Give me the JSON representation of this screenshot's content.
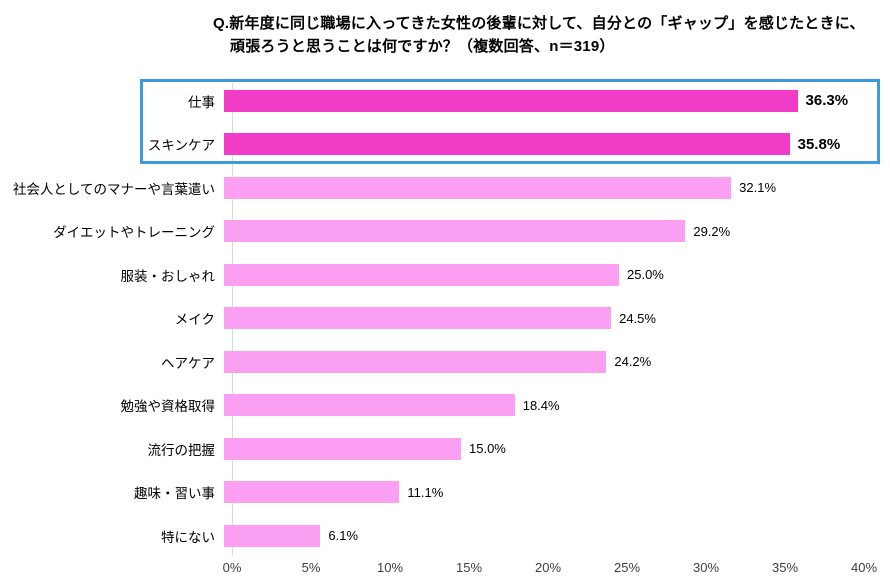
{
  "title": {
    "line1": "Q.新年度に同じ職場に入ってきた女性の後輩に対して、自分との「ギャップ」を感じたときに、",
    "line2": "頑張ろうと思うことは何ですか？（複数回答、n＝319）"
  },
  "chart_data": {
    "type": "bar",
    "orientation": "horizontal",
    "title": "Q.新年度に同じ職場に入ってきた女性の後輩に対して、自分との「ギャップ」を感じたときに、頑張ろうと思うことは何ですか？（複数回答、n＝319）",
    "categories": [
      "仕事",
      "スキンケア",
      "社会人としてのマナーや言葉遣い",
      "ダイエットやトレーニング",
      "服装・おしゃれ",
      "メイク",
      "ヘアケア",
      "勉強や資格取得",
      "流行の把握",
      "趣味・習い事",
      "特にない"
    ],
    "values": [
      36.3,
      35.8,
      32.1,
      29.2,
      25.0,
      24.5,
      24.2,
      18.4,
      15.0,
      11.1,
      6.1
    ],
    "value_labels": [
      "36.3%",
      "35.8%",
      "32.1%",
      "29.2%",
      "25.0%",
      "24.5%",
      "24.2%",
      "18.4%",
      "15.0%",
      "11.1%",
      "6.1%"
    ],
    "highlight_count": 2,
    "highlighted_categories": [
      "仕事",
      "スキンケア"
    ],
    "xlim": [
      0,
      40
    ],
    "xmax": 40,
    "x_ticks": [
      "0%",
      "5%",
      "10%",
      "15%",
      "20%",
      "25%",
      "30%",
      "35%",
      "40%"
    ],
    "grid": false,
    "legend": "none",
    "colors": {
      "bar_normal": "#fa9ff2",
      "bar_highlight": "#f03cc6",
      "highlight_box_border": "#3d9bdc",
      "axis_line": "#d9d9d9",
      "tick_text": "#404040",
      "title_text": "#000000"
    }
  }
}
